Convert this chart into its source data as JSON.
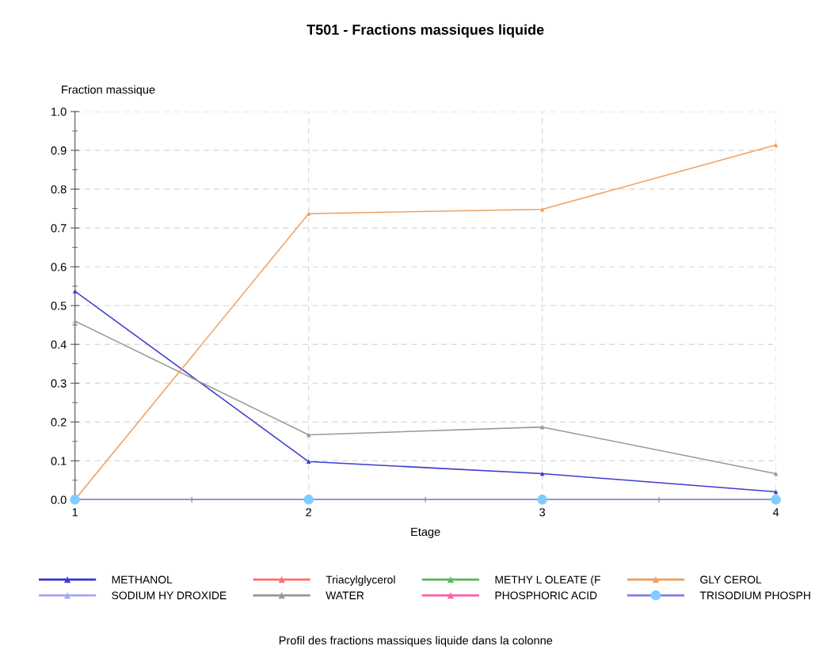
{
  "chart_data": {
    "type": "line",
    "title": "T501 - Fractions massiques liquide",
    "xlabel": "Etage",
    "ylabel": "Fraction massique",
    "x": [
      1,
      2,
      3,
      4
    ],
    "xlim": [
      1,
      4
    ],
    "xticks": [
      1,
      2,
      3,
      4
    ],
    "ylim": [
      0,
      1.0
    ],
    "yticks": [
      {
        "value": 0,
        "label": "0.0"
      },
      0.1,
      0.2,
      0.3,
      0.4,
      0.5,
      0.6,
      0.7,
      0.8,
      0.9,
      {
        "value": 1.0,
        "label": "1.0"
      }
    ],
    "grid": true,
    "legend": "bottom",
    "marker": "triangle",
    "line_style": "solid",
    "annotations": [
      "Profil des fractions massiques liquide dans la colonne"
    ],
    "series": [
      {
        "name": "METHANOL",
        "color": "#3c3cd0",
        "values": [
          0.537,
          0.098,
          0.067,
          0.02
        ]
      },
      {
        "name": "SODIUM HY DROXIDE",
        "color": "#a8a8f8",
        "values": [
          null,
          null,
          null,
          null
        ]
      },
      {
        "name": "Triacylglycerol",
        "color": "#ff7070",
        "values": [
          null,
          null,
          null,
          null
        ]
      },
      {
        "name": "WATER",
        "color": "#999999",
        "values": [
          0.46,
          0.167,
          0.187,
          0.067
        ]
      },
      {
        "name": "METHY L OLEATE (F",
        "color": "#5cb85c",
        "values": [
          null,
          null,
          null,
          null
        ]
      },
      {
        "name": "PHOSPHORIC ACID",
        "color": "#ff5fa8",
        "values": [
          null,
          null,
          null,
          null
        ]
      },
      {
        "name": "GLY CEROL",
        "color": "#f0a060",
        "values": [
          0.0,
          0.737,
          0.748,
          0.914
        ]
      },
      {
        "name": "TRISODIUM PHOSPH",
        "color": "#8080e8",
        "marker": "circle",
        "colors": [
          "#80ccff",
          "#80ccff",
          "#80ccff",
          "#80ccff"
        ],
        "values": [
          0,
          0,
          0,
          0
        ]
      }
    ]
  }
}
